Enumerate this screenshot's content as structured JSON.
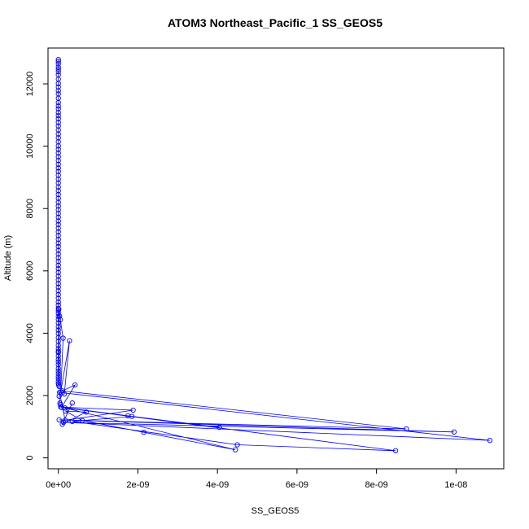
{
  "chart_data": {
    "type": "line",
    "title": "ATOM3 Northeast_Pacific_1 SS_GEOS5",
    "xlabel": "SS_GEOS5",
    "ylabel": "Altitude (m)",
    "xlim": [
      -2.6e-10,
      1.12e-08
    ],
    "ylim": [
      -350,
      13150
    ],
    "x_ticks": [
      0,
      2e-09,
      4e-09,
      6e-09,
      8e-09,
      1e-08
    ],
    "x_tick_labels": [
      "0e+00",
      "2e-09",
      "4e-09",
      "6e-09",
      "8e-09",
      "1e-08"
    ],
    "y_ticks": [
      0,
      2000,
      4000,
      6000,
      8000,
      10000,
      12000
    ],
    "y_tick_labels": [
      "0",
      "2000",
      "4000",
      "6000",
      "8000",
      "10000",
      "12000"
    ],
    "grid": false,
    "legend": "none",
    "color": "#0000ff",
    "marker": "open-circle",
    "series": [
      {
        "x": [
          0,
          0,
          0,
          0,
          0,
          0,
          0,
          0,
          0,
          0,
          0,
          0,
          0,
          0,
          0,
          0,
          0,
          0,
          0,
          0,
          0,
          0,
          0,
          0,
          0,
          0,
          0,
          0,
          0,
          0,
          0,
          0,
          0,
          0,
          0,
          0,
          0,
          0,
          0,
          0,
          0,
          0,
          0,
          0,
          0,
          0,
          0,
          0,
          0,
          0,
          0,
          0,
          0,
          0,
          0,
          0,
          0,
          0,
          0,
          0,
          0,
          0,
          0,
          0,
          0,
          0,
          0,
          0,
          0,
          0,
          0,
          0,
          0,
          0,
          0,
          0,
          0,
          0,
          0,
          0,
          0,
          0,
          0,
          0,
          0,
          0,
          0,
          0,
          0,
          0,
          0,
          0,
          0,
          0,
          0,
          1e-11,
          2e-11,
          1e-11,
          3e-11,
          5e-11,
          1.2e-10,
          6e-11,
          2.8e-10,
          1.5e-10,
          2e-11,
          4e-11,
          5e-11,
          8e-11,
          4.2e-10,
          1e-10,
          8.75e-09,
          2e-11,
          9.95e-09,
          1.3e-10,
          1.085e-08,
          3e-11,
          1.7e-10,
          1.88e-09,
          6e-11,
          1.75e-09,
          4.05e-09,
          1.85e-09,
          3.5e-10,
          4.5e-09,
          8.48e-09,
          1.7e-10,
          4.45e-09,
          2.15e-09,
          6e-10,
          1.8e-10,
          7e-10,
          1e-10,
          3.5e-10
        ],
        "y": [
          12780,
          12720,
          12640,
          12540,
          12470,
          12390,
          12290,
          12150,
          12010,
          11900,
          11780,
          11680,
          11540,
          11400,
          11290,
          11200,
          11080,
          10980,
          10880,
          10760,
          10650,
          10520,
          10390,
          10270,
          10140,
          10010,
          9900,
          9780,
          9660,
          9540,
          9420,
          9300,
          9190,
          9070,
          8940,
          8820,
          8690,
          8570,
          8450,
          8330,
          8200,
          8080,
          7960,
          7840,
          7720,
          7600,
          7490,
          7370,
          7250,
          7130,
          7010,
          6890,
          6780,
          6660,
          6540,
          6420,
          6300,
          6180,
          6070,
          5950,
          5830,
          5710,
          5590,
          5480,
          5360,
          5240,
          5120,
          5000,
          4900,
          4800,
          4720,
          4640,
          4540,
          4440,
          4330,
          4210,
          4100,
          3990,
          3860,
          3740,
          3610,
          3500,
          3420,
          3380,
          3270,
          3160,
          3080,
          2990,
          2870,
          2780,
          2700,
          2610,
          2540,
          2460,
          2380,
          2330,
          2290,
          4770,
          4550,
          4430,
          3840,
          2120,
          3760,
          2050,
          1980,
          1760,
          1710,
          1620,
          2340,
          2150,
          930,
          1220,
          830,
          1140,
          560,
          2100,
          1210,
          1530,
          1630,
          1350,
          980,
          1330,
          1170,
          420,
          230,
          1600,
          260,
          820,
          1200,
          1500,
          1470,
          1080,
          1760
        ]
      }
    ]
  }
}
